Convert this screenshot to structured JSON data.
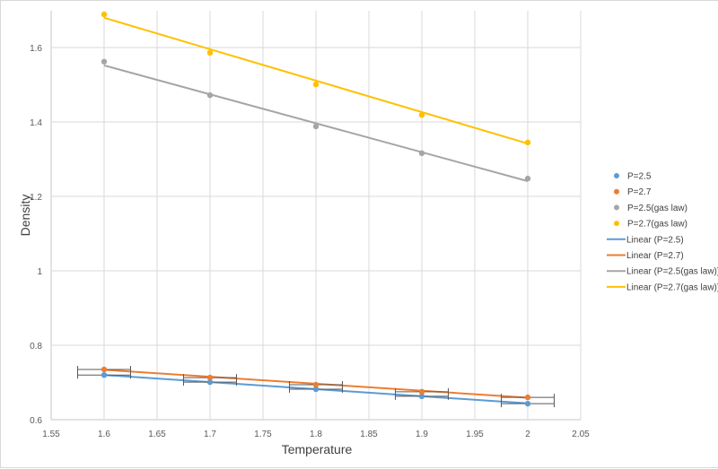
{
  "chart_data": {
    "type": "scatter",
    "title": "",
    "xlabel": "Temperature",
    "ylabel": "Density",
    "xlim": [
      1.55,
      2.05
    ],
    "ylim": [
      0.6,
      1.7
    ],
    "x_ticks": [
      "1.55",
      "1.6",
      "1.65",
      "1.7",
      "1.75",
      "1.8",
      "1.85",
      "1.9",
      "1.95",
      "2",
      "2.05"
    ],
    "y_ticks": [
      "0.6",
      "0.8",
      "1",
      "1.2",
      "1.4",
      "1.6"
    ],
    "grid": true,
    "legend_position": "right",
    "x": [
      1.6,
      1.7,
      1.8,
      1.9,
      2.0
    ],
    "series": [
      {
        "name": "P=2.5",
        "color": "#5b9bd5",
        "values": [
          0.72,
          0.701,
          0.682,
          0.663,
          0.643
        ],
        "x_error": 0.025
      },
      {
        "name": "P=2.7",
        "color": "#ed7d31",
        "values": [
          0.735,
          0.713,
          0.694,
          0.675,
          0.66
        ],
        "x_error": 0.025
      },
      {
        "name": "P=2.5(gas law)",
        "color": "#a5a5a5",
        "values": [
          1.562,
          1.472,
          1.388,
          1.316,
          1.248
        ]
      },
      {
        "name": "P=2.7(gas law)",
        "color": "#ffc000",
        "values": [
          1.689,
          1.586,
          1.501,
          1.419,
          1.345
        ]
      }
    ],
    "trendlines": [
      {
        "name": "Linear (P=2.5)",
        "color": "#5b9bd5",
        "start": [
          1.6,
          0.72
        ],
        "end": [
          2.0,
          0.644
        ]
      },
      {
        "name": "Linear (P=2.7)",
        "color": "#ed7d31",
        "start": [
          1.6,
          0.734
        ],
        "end": [
          2.0,
          0.659
        ]
      },
      {
        "name": "Linear (P=2.5(gas law))",
        "color": "#a5a5a5",
        "start": [
          1.6,
          1.552
        ],
        "end": [
          2.0,
          1.241
        ]
      },
      {
        "name": "Linear (P=2.7(gas law))",
        "color": "#ffc000",
        "start": [
          1.6,
          1.68
        ],
        "end": [
          2.0,
          1.342
        ]
      }
    ]
  },
  "legend": {
    "items": [
      {
        "label": "P=2.5",
        "type": "marker",
        "color": "#5b9bd5"
      },
      {
        "label": "P=2.7",
        "type": "marker",
        "color": "#ed7d31"
      },
      {
        "label": "P=2.5(gas law)",
        "type": "marker",
        "color": "#a5a5a5"
      },
      {
        "label": "P=2.7(gas law)",
        "type": "marker",
        "color": "#ffc000"
      },
      {
        "label": "Linear (P=2.5)",
        "type": "line",
        "color": "#5b9bd5"
      },
      {
        "label": "Linear (P=2.7)",
        "type": "line",
        "color": "#ed7d31"
      },
      {
        "label": "Linear (P=2.5(gas law))",
        "type": "line",
        "color": "#a5a5a5"
      },
      {
        "label": "Linear (P=2.7(gas law))",
        "type": "line",
        "color": "#ffc000"
      }
    ]
  }
}
